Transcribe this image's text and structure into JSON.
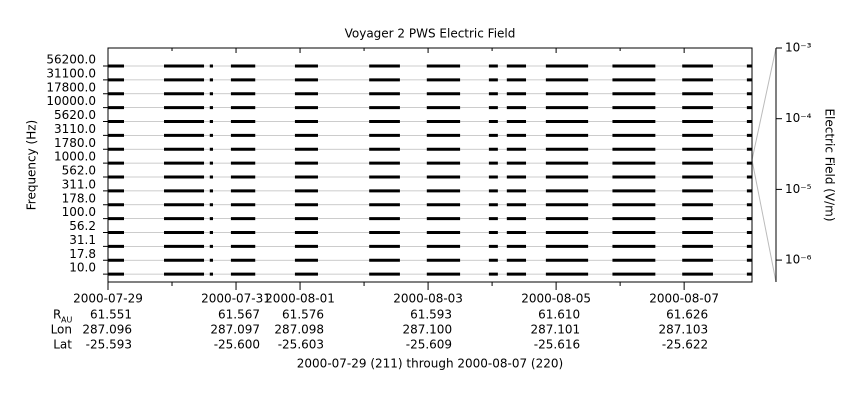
{
  "chart_data": {
    "type": "coverage",
    "title": "Voyager 2 PWS Electric Field",
    "ylabel": "Frequency (Hz)",
    "channels": [
      "56200.0",
      "31100.0",
      "17800.0",
      "10000.0",
      "5620.0",
      "3110.0",
      "1780.0",
      "1000.0",
      "562.0",
      "311.0",
      "178.0",
      "100.0",
      "56.2",
      "31.1",
      "17.8",
      "10.0"
    ],
    "xlim": [
      0,
      10.06
    ],
    "xticks": [
      {
        "value": 0,
        "label": "2000-07-29"
      },
      {
        "value": 2,
        "label": "2000-07-31"
      },
      {
        "value": 3,
        "label": "2000-08-01"
      },
      {
        "value": 5,
        "label": "2000-08-03"
      },
      {
        "value": 7,
        "label": "2000-08-05"
      },
      {
        "value": 9,
        "label": "2000-08-07"
      }
    ],
    "xminor": [
      1,
      4,
      6,
      8
    ],
    "segments": [
      [
        0,
        0.25
      ],
      [
        0.875,
        1.5
      ],
      [
        1.59,
        1.64
      ],
      [
        1.92,
        2.3
      ],
      [
        2.92,
        3.28
      ],
      [
        4.08,
        4.56
      ],
      [
        4.98,
        5.5
      ],
      [
        5.95,
        6.09
      ],
      [
        6.23,
        6.53
      ],
      [
        6.84,
        7.5
      ],
      [
        7.88,
        8.55
      ],
      [
        8.97,
        9.45
      ],
      [
        9.98,
        10.06
      ]
    ],
    "color": "#000000",
    "y2label": "Electric Field (V/m)",
    "y2log": true,
    "y2lim": [
      4.9e-07,
      0.001
    ],
    "y2ticks": [
      {
        "value": 0.001,
        "label": "10⁻³"
      },
      {
        "value": 0.0001,
        "label": "10⁻⁴"
      },
      {
        "value": 1e-05,
        "label": "10⁻⁵"
      },
      {
        "value": 1e-06,
        "label": "10⁻⁶"
      }
    ],
    "ephemeris": [
      {
        "label": "R",
        "sub": "AU",
        "values": [
          "61.551",
          "61.567",
          "61.576",
          "61.593",
          "61.610",
          "61.626"
        ]
      },
      {
        "label": "Lon",
        "values": [
          "287.096",
          "287.097",
          "287.098",
          "287.100",
          "287.101",
          "287.103"
        ]
      },
      {
        "label": "Lat",
        "values": [
          "-25.593",
          "-25.600",
          "-25.603",
          "-25.609",
          "-25.616",
          "-25.622"
        ]
      }
    ],
    "footer": "2000-07-29 (211) through 2000-08-07 (220)"
  }
}
